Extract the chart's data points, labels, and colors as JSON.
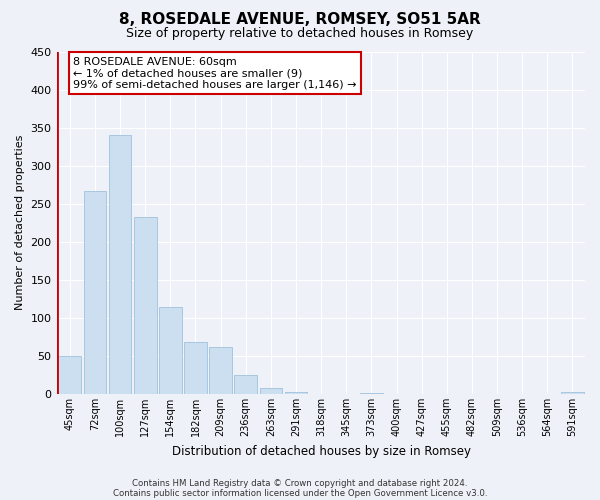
{
  "title": "8, ROSEDALE AVENUE, ROMSEY, SO51 5AR",
  "subtitle": "Size of property relative to detached houses in Romsey",
  "xlabel": "Distribution of detached houses by size in Romsey",
  "ylabel": "Number of detached properties",
  "bar_color": "#ccdff0",
  "bar_edge_color": "#a8c8e0",
  "categories": [
    "45sqm",
    "72sqm",
    "100sqm",
    "127sqm",
    "154sqm",
    "182sqm",
    "209sqm",
    "236sqm",
    "263sqm",
    "291sqm",
    "318sqm",
    "345sqm",
    "373sqm",
    "400sqm",
    "427sqm",
    "455sqm",
    "482sqm",
    "509sqm",
    "536sqm",
    "564sqm",
    "591sqm"
  ],
  "values": [
    50,
    267,
    340,
    232,
    114,
    68,
    62,
    25,
    8,
    2,
    0,
    0,
    1,
    0,
    0,
    0,
    0,
    0,
    0,
    0,
    2
  ],
  "ylim": [
    0,
    450
  ],
  "yticks": [
    0,
    50,
    100,
    150,
    200,
    250,
    300,
    350,
    400,
    450
  ],
  "annotation_title": "8 ROSEDALE AVENUE: 60sqm",
  "annotation_line1": "← 1% of detached houses are smaller (9)",
  "annotation_line2": "99% of semi-detached houses are larger (1,146) →",
  "footer1": "Contains HM Land Registry data © Crown copyright and database right 2024.",
  "footer2": "Contains public sector information licensed under the Open Government Licence v3.0.",
  "background_color": "#eef2f8",
  "plot_bg_color": "#eef2f8",
  "grid_color": "#ffffff",
  "red_line_color": "#cc0000"
}
